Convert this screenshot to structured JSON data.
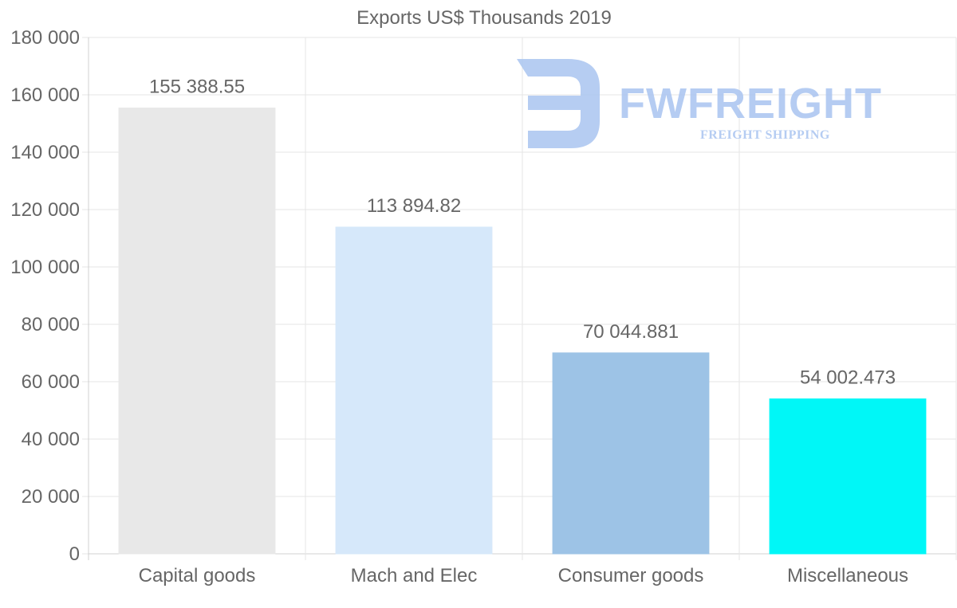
{
  "chart_data": {
    "type": "bar",
    "title": "Exports US$ Thousands 2019",
    "categories": [
      "Capital goods",
      "Mach and Elec",
      "Consumer goods",
      "Miscellaneous"
    ],
    "values": [
      155388.55,
      113894.82,
      70044.881,
      54002.473
    ],
    "value_labels": [
      "155 388.55",
      "113 894.82",
      "70 044.881",
      "54 002.473"
    ],
    "bar_colors": [
      "#e8e8e8",
      "#d6e8fa",
      "#9dc3e6",
      "#00f7f7"
    ],
    "ylim": [
      0,
      180000
    ],
    "yticks": [
      0,
      20000,
      40000,
      60000,
      80000,
      100000,
      120000,
      140000,
      160000,
      180000
    ],
    "ytick_labels": [
      "0",
      "20 000",
      "40 000",
      "60 000",
      "80 000",
      "100 000",
      "120 000",
      "140 000",
      "160 000",
      "180 000"
    ],
    "xlabel": "",
    "ylabel": "",
    "grid": true,
    "legend": "none"
  },
  "watermark": {
    "brand": "FWFREIGHT",
    "tagline": "FREIGHT SHIPPING",
    "color": "#a9c4f0"
  }
}
